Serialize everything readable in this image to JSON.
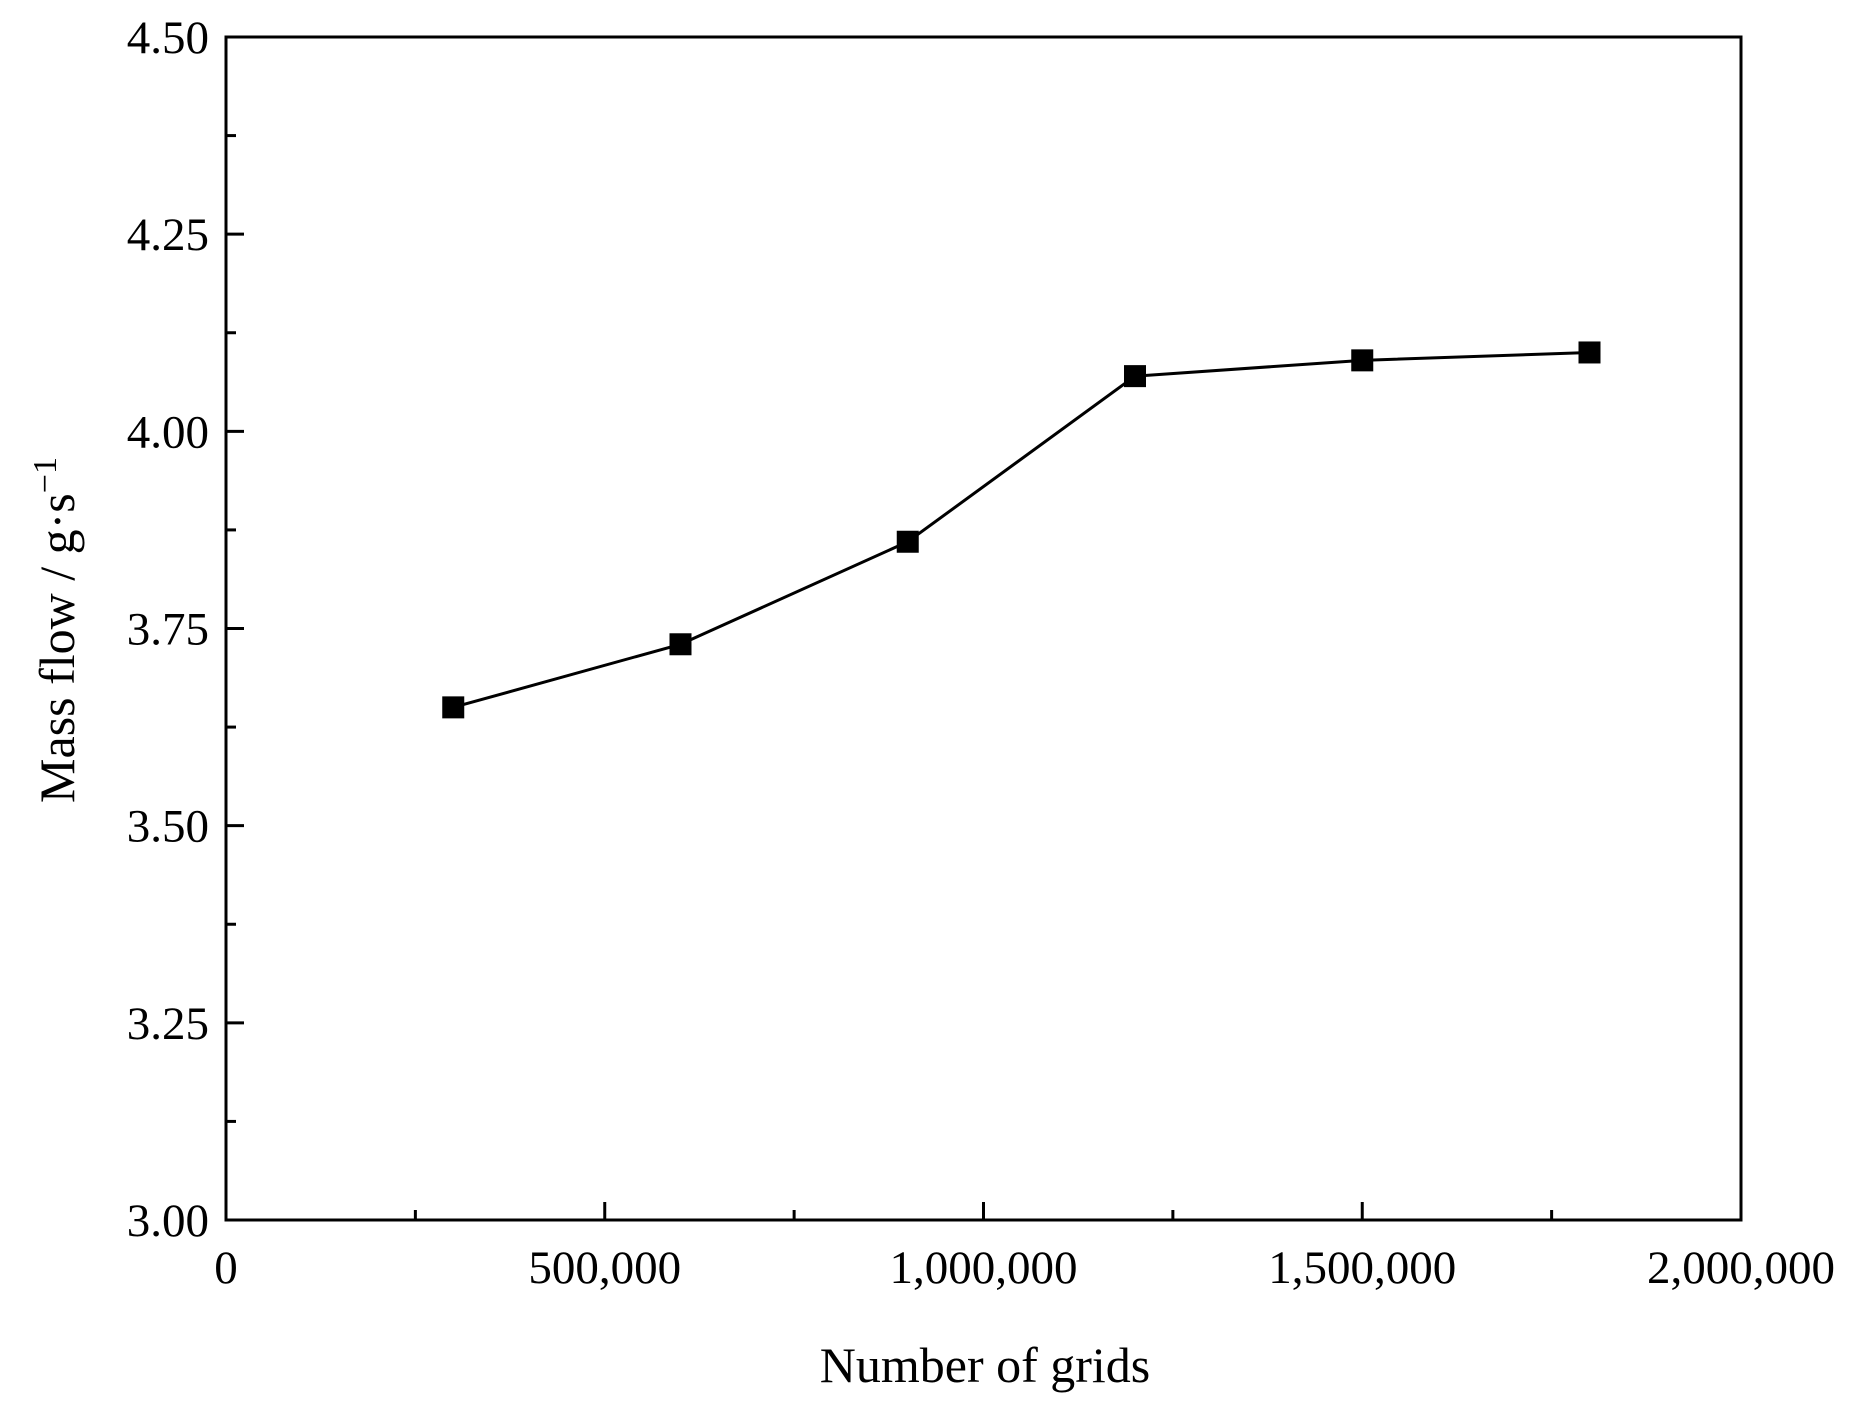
{
  "chart_data": {
    "type": "line",
    "xlabel": "Number of grids",
    "ylabel_main": "Mass flow / g·s",
    "ylabel_sup": "−1",
    "xlim": [
      0,
      2000000
    ],
    "ylim": [
      3.0,
      4.5
    ],
    "x_ticks": [
      {
        "value": 0,
        "label": "0"
      },
      {
        "value": 500000,
        "label": "500,000"
      },
      {
        "value": 1000000,
        "label": "1,000,000"
      },
      {
        "value": 1500000,
        "label": "1,500,000"
      },
      {
        "value": 2000000,
        "label": "2,000,000"
      }
    ],
    "x_minor_ticks": [
      250000,
      750000,
      1250000,
      1750000
    ],
    "y_ticks": [
      {
        "value": 3.0,
        "label": "3.00"
      },
      {
        "value": 3.25,
        "label": "3.25"
      },
      {
        "value": 3.5,
        "label": "3.50"
      },
      {
        "value": 3.75,
        "label": "3.75"
      },
      {
        "value": 4.0,
        "label": "4.00"
      },
      {
        "value": 4.25,
        "label": "4.25"
      },
      {
        "value": 4.5,
        "label": "4.50"
      }
    ],
    "y_minor_ticks": [
      3.125,
      3.375,
      3.625,
      3.875,
      4.125,
      4.375
    ],
    "grid": false,
    "series": [
      {
        "marker": "square",
        "color": "#000000",
        "x": [
          300000,
          600000,
          900000,
          1200000,
          1500000,
          1800000
        ],
        "y": [
          3.65,
          3.73,
          3.86,
          4.07,
          4.09,
          4.1
        ]
      }
    ]
  }
}
